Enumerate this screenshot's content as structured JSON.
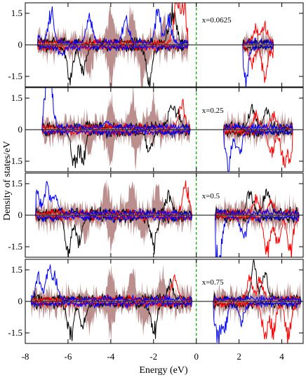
{
  "chart_data": {
    "type": "area",
    "xlabel": "Energy (eV)",
    "ylabel": "Density of states/eV",
    "xlim": [
      -8,
      5
    ],
    "x_ticks": [
      -8,
      -6,
      -4,
      -2,
      0,
      2,
      4
    ],
    "x_tick_labels": [
      "-8",
      "-6",
      "-4",
      "-2",
      "0",
      "2",
      "4"
    ],
    "y_tick_labels": [
      "1.5",
      "0",
      "-1.5"
    ],
    "fermi_level": 0,
    "series_colors": {
      "total": "#bc8f8f",
      "s1": "#000000",
      "s2": "#ff0000",
      "s3": "#0000ff",
      "fermi": "#00aa00"
    },
    "panels": [
      {
        "label": "x=0.0625",
        "ylim": [
          -2.0,
          2.0
        ],
        "gap": [
          0.0,
          2.2
        ],
        "valence": [
          -7.4,
          -0.4
        ],
        "conduction": [
          2.2,
          3.6
        ],
        "blue_occ": [
          [
            -7.5,
            0.7
          ],
          [
            -6.8,
            1.6
          ],
          [
            -5.0,
            1.4
          ],
          [
            -3.3,
            1.3
          ],
          [
            -1.8,
            1.6
          ],
          [
            -1.3,
            1.2
          ]
        ],
        "blue_unocc": [
          [
            1.5,
            -2.0
          ],
          [
            2.3,
            -1.8
          ],
          [
            -6.3,
            -0.4
          ]
        ],
        "black_occ": [
          [
            -1.2,
            1.1
          ],
          [
            -1.0,
            0.8
          ]
        ],
        "black_unocc": [
          [
            -5.9,
            -1.7
          ],
          [
            -5.3,
            -1.2
          ],
          [
            -2.2,
            -1.8
          ]
        ],
        "red_occ": [
          [
            -0.9,
            2.2
          ],
          [
            -0.6,
            1.9
          ],
          [
            2.8,
            0.8
          ],
          [
            3.2,
            0.9
          ]
        ],
        "red_unocc": [
          [
            2.6,
            -0.8
          ],
          [
            3.2,
            -1.6
          ],
          [
            3.8,
            -1.9
          ]
        ],
        "brown_occ": [
          [
            -4.0,
            1.4
          ],
          [
            -3.0,
            1.5
          ],
          [
            -1.5,
            1.0
          ]
        ],
        "brown_unocc": [
          [
            -5.0,
            -1.2
          ],
          [
            -4.0,
            -1.5
          ],
          [
            -2.5,
            -1.5
          ]
        ],
        "peak_scale": 1.0
      },
      {
        "label": "x=0.25",
        "ylim": [
          -2.0,
          2.0
        ],
        "gap": [
          0.0,
          1.3
        ],
        "valence": [
          -7.2,
          -0.3
        ],
        "conduction": [
          1.3,
          4.5
        ],
        "blue_occ": [
          [
            -7.0,
            2.0
          ],
          [
            -6.8,
            1.8
          ],
          [
            -4.2,
            0.3
          ]
        ],
        "blue_unocc": [
          [
            1.5,
            -1.8
          ],
          [
            1.0,
            -1.4
          ],
          [
            2.0,
            -1.2
          ]
        ],
        "black_occ": [
          [
            -1.2,
            1.0
          ],
          [
            -0.9,
            0.7
          ],
          [
            2.6,
            0.9
          ],
          [
            3.3,
            0.9
          ]
        ],
        "black_unocc": [
          [
            -5.7,
            -1.8
          ],
          [
            -5.3,
            -1.4
          ],
          [
            -2.2,
            -1.1
          ]
        ],
        "red_occ": [
          [
            -0.7,
            1.3
          ],
          [
            2.8,
            0.7
          ],
          [
            3.6,
            0.6
          ]
        ],
        "red_unocc": [
          [
            3.5,
            -1.2
          ],
          [
            4.1,
            -1.6
          ],
          [
            4.4,
            -1.2
          ]
        ],
        "brown_occ": [
          [
            -4.0,
            1.1
          ],
          [
            -3.0,
            1.2
          ],
          [
            -2.0,
            1.0
          ]
        ],
        "brown_unocc": [
          [
            -5.0,
            -0.9
          ],
          [
            -4.0,
            -1.1
          ],
          [
            -2.8,
            -1.2
          ]
        ],
        "peak_scale": 1.0
      },
      {
        "label": "x=0.5",
        "ylim": [
          -2.0,
          2.0
        ],
        "gap": [
          0.0,
          0.9
        ],
        "valence": [
          -7.5,
          -0.2
        ],
        "conduction": [
          0.9,
          4.8
        ],
        "blue_occ": [
          [
            -7.5,
            1.6
          ],
          [
            -7.0,
            1.3
          ],
          [
            -6.6,
            0.9
          ]
        ],
        "blue_unocc": [
          [
            0.9,
            -1.4
          ],
          [
            1.1,
            -1.6
          ],
          [
            2.2,
            -1.1
          ]
        ],
        "black_occ": [
          [
            -1.3,
            0.9
          ],
          [
            2.5,
            1.1
          ],
          [
            3.3,
            1.2
          ]
        ],
        "black_unocc": [
          [
            -6.0,
            -1.8
          ],
          [
            -5.5,
            -1.3
          ],
          [
            -2.0,
            -1.5
          ]
        ],
        "red_occ": [
          [
            -0.5,
            1.5
          ],
          [
            2.8,
            0.7
          ],
          [
            3.5,
            0.5
          ]
        ],
        "red_unocc": [
          [
            3.3,
            -1.9
          ],
          [
            4.4,
            -1.7
          ],
          [
            3.8,
            -1.3
          ]
        ],
        "brown_occ": [
          [
            -4.2,
            1.1
          ],
          [
            -3.0,
            1.2
          ],
          [
            -1.8,
            1.0
          ]
        ],
        "brown_unocc": [
          [
            -5.2,
            -1.0
          ],
          [
            -4.0,
            -1.1
          ],
          [
            -2.5,
            -1.0
          ]
        ],
        "peak_scale": 1.0
      },
      {
        "label": "x=0.75",
        "ylim": [
          -2.0,
          2.0
        ],
        "gap": [
          0.0,
          0.8
        ],
        "valence": [
          -7.7,
          -0.2
        ],
        "conduction": [
          0.8,
          4.9
        ],
        "blue_occ": [
          [
            -7.4,
            1.1
          ],
          [
            -6.9,
            1.6
          ],
          [
            -6.6,
            1.0
          ]
        ],
        "blue_unocc": [
          [
            1.0,
            -1.7
          ],
          [
            1.3,
            -1.4
          ],
          [
            2.1,
            -1.0
          ]
        ],
        "black_occ": [
          [
            -1.2,
            0.8
          ],
          [
            2.7,
            1.6
          ],
          [
            3.2,
            1.4
          ]
        ],
        "black_unocc": [
          [
            -5.9,
            -1.8
          ],
          [
            -5.3,
            -1.2
          ],
          [
            -2.0,
            -1.5
          ]
        ],
        "red_occ": [
          [
            -1.0,
            1.3
          ],
          [
            2.5,
            1.0
          ],
          [
            3.0,
            1.0
          ]
        ],
        "red_unocc": [
          [
            3.2,
            -1.6
          ],
          [
            4.3,
            -1.8
          ],
          [
            3.6,
            -1.4
          ]
        ],
        "brown_occ": [
          [
            -4.0,
            1.0
          ],
          [
            -3.0,
            1.1
          ],
          [
            -1.6,
            1.0
          ]
        ],
        "brown_unocc": [
          [
            -5.0,
            -0.9
          ],
          [
            -4.0,
            -1.0
          ],
          [
            -2.5,
            -1.0
          ]
        ],
        "peak_scale": 1.0
      }
    ]
  }
}
